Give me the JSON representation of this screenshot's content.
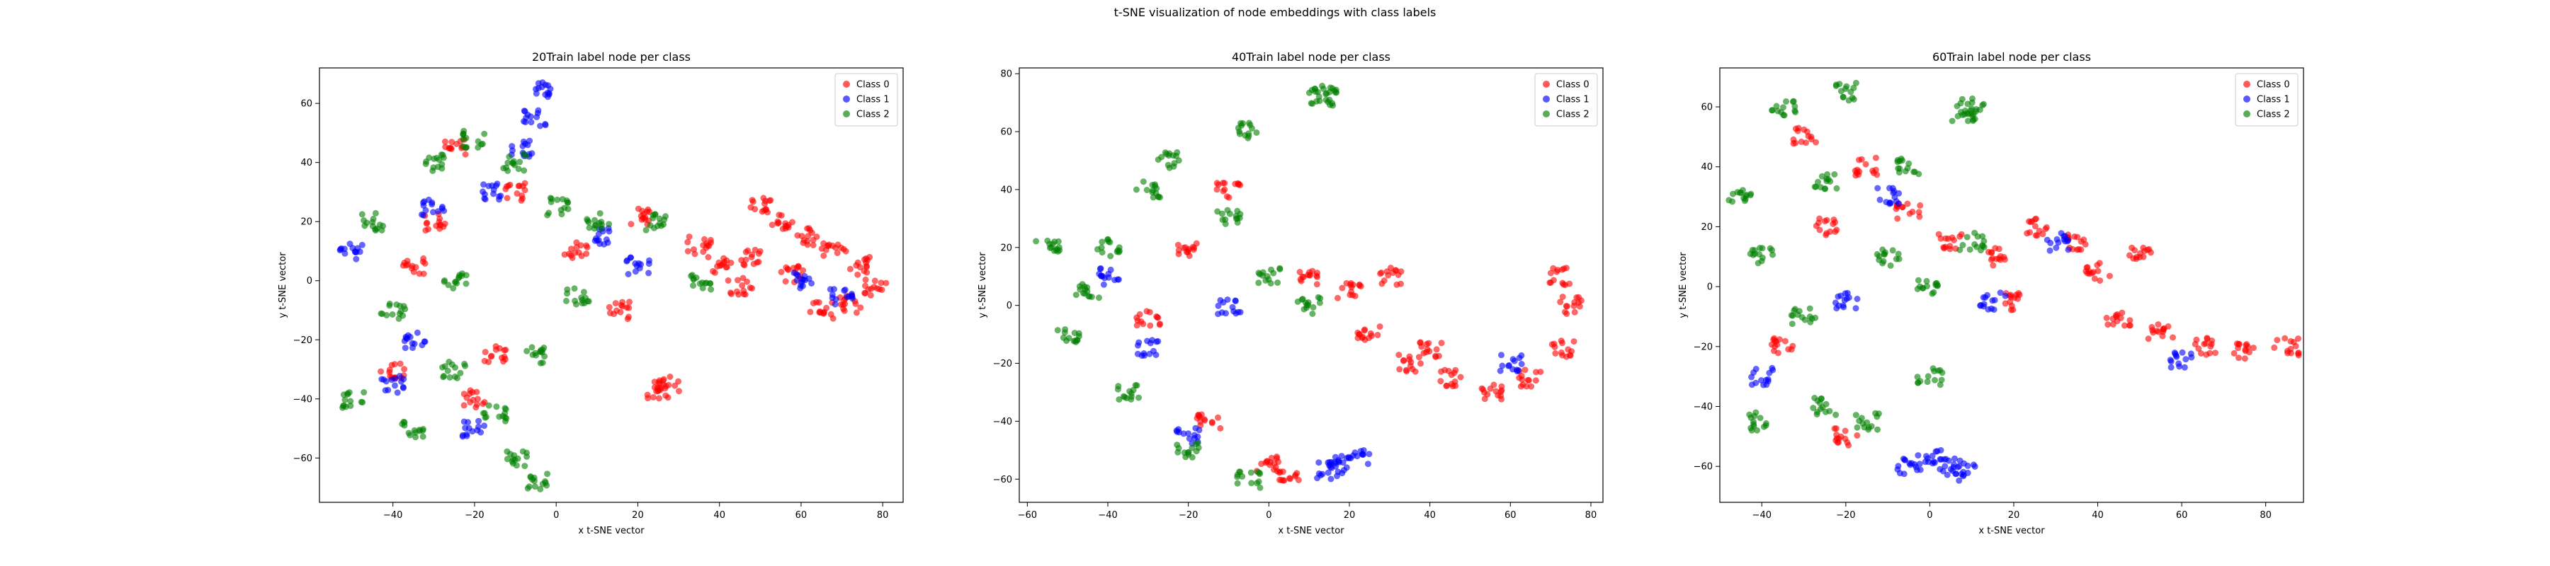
{
  "figure": {
    "suptitle": "t-SNE visualization of node embeddings with class labels"
  },
  "legend_location": "upper-right",
  "chart_data": [
    {
      "type": "scatter",
      "title": "20Train label node per class",
      "xlabel": "x t-SNE vector",
      "ylabel": "y t-SNE vector",
      "xlim": [
        -58,
        85
      ],
      "ylim": [
        -75,
        72
      ],
      "xticks": [
        -40,
        -20,
        0,
        20,
        40,
        60,
        80
      ],
      "yticks": [
        -60,
        -40,
        -20,
        0,
        20,
        40,
        60
      ],
      "grid": false,
      "legend": [
        "Class 0",
        "Class 1",
        "Class 2"
      ],
      "colors": {
        "Class 0": "#ff0000",
        "Class 1": "#0000ff",
        "Class 2": "#008000"
      },
      "series": [
        {
          "name": "Class 0",
          "values": [
            [
              50,
              25
            ],
            [
              55,
              20
            ],
            [
              62,
              15
            ],
            [
              68,
              10
            ],
            [
              75,
              5
            ],
            [
              78,
              -2
            ],
            [
              72,
              -8
            ],
            [
              65,
              -10
            ],
            [
              58,
              2
            ],
            [
              48,
              8
            ],
            [
              40,
              5
            ],
            [
              35,
              12
            ],
            [
              45,
              -2
            ],
            [
              28,
              -35
            ],
            [
              25,
              -37
            ],
            [
              -25,
              45
            ],
            [
              -30,
              20
            ],
            [
              -40,
              -30
            ],
            [
              -20,
              -40
            ],
            [
              -10,
              30
            ],
            [
              5,
              10
            ],
            [
              15,
              -10
            ],
            [
              -35,
              5
            ],
            [
              -15,
              -25
            ],
            [
              20,
              22
            ]
          ]
        },
        {
          "name": "Class 1",
          "values": [
            [
              -2,
              65
            ],
            [
              -5,
              55
            ],
            [
              -8,
              45
            ],
            [
              -30,
              25
            ],
            [
              -35,
              -20
            ],
            [
              -40,
              -35
            ],
            [
              -20,
              -50
            ],
            [
              10,
              15
            ],
            [
              20,
              5
            ],
            [
              -50,
              10
            ],
            [
              60,
              0
            ],
            [
              70,
              -5
            ],
            [
              -15,
              30
            ]
          ]
        },
        {
          "name": "Class 2",
          "values": [
            [
              -5,
              -68
            ],
            [
              -10,
              -60
            ],
            [
              -15,
              -45
            ],
            [
              -25,
              -30
            ],
            [
              -45,
              20
            ],
            [
              -30,
              40
            ],
            [
              -20,
              48
            ],
            [
              -10,
              40
            ],
            [
              0,
              25
            ],
            [
              10,
              20
            ],
            [
              5,
              -5
            ],
            [
              -5,
              -25
            ],
            [
              -40,
              -10
            ],
            [
              -25,
              0
            ],
            [
              25,
              20
            ],
            [
              35,
              0
            ],
            [
              -50,
              -40
            ],
            [
              -35,
              -50
            ]
          ]
        }
      ]
    },
    {
      "type": "scatter",
      "title": "40Train label node per class",
      "xlabel": "x t-SNE vector",
      "ylabel": "y t-SNE vector",
      "xlim": [
        -62,
        83
      ],
      "ylim": [
        -68,
        82
      ],
      "xticks": [
        -60,
        -40,
        -20,
        0,
        20,
        40,
        60,
        80
      ],
      "yticks": [
        -60,
        -40,
        -20,
        0,
        20,
        40,
        60,
        80
      ],
      "grid": false,
      "legend": [
        "Class 0",
        "Class 1",
        "Class 2"
      ],
      "colors": {
        "Class 0": "#ff0000",
        "Class 1": "#0000ff",
        "Class 2": "#008000"
      },
      "series": [
        {
          "name": "Class 0",
          "values": [
            [
              72,
              10
            ],
            [
              75,
              0
            ],
            [
              73,
              -15
            ],
            [
              65,
              -25
            ],
            [
              55,
              -30
            ],
            [
              45,
              -25
            ],
            [
              35,
              -20
            ],
            [
              25,
              -10
            ],
            [
              20,
              5
            ],
            [
              10,
              10
            ],
            [
              -10,
              40
            ],
            [
              -20,
              20
            ],
            [
              -30,
              -5
            ],
            [
              -15,
              -40
            ],
            [
              0,
              -55
            ],
            [
              5,
              -58
            ],
            [
              40,
              -15
            ],
            [
              30,
              10
            ]
          ]
        },
        {
          "name": "Class 1",
          "values": [
            [
              18,
              -55
            ],
            [
              22,
              -53
            ],
            [
              15,
              -57
            ],
            [
              -30,
              -15
            ],
            [
              -20,
              -45
            ],
            [
              -40,
              10
            ],
            [
              -10,
              0
            ],
            [
              60,
              -20
            ]
          ]
        },
        {
          "name": "Class 2",
          "values": [
            [
              14,
              73
            ],
            [
              13,
              72
            ],
            [
              -25,
              50
            ],
            [
              -5,
              60
            ],
            [
              -40,
              20
            ],
            [
              -55,
              20
            ],
            [
              -50,
              -10
            ],
            [
              -35,
              -30
            ],
            [
              -20,
              -50
            ],
            [
              -10,
              30
            ],
            [
              0,
              10
            ],
            [
              10,
              0
            ],
            [
              -30,
              40
            ],
            [
              -45,
              5
            ],
            [
              -5,
              -60
            ]
          ]
        }
      ]
    },
    {
      "type": "scatter",
      "title": "60Train label node per class",
      "xlabel": "x t-SNE vector",
      "ylabel": "y t-SNE vector",
      "xlim": [
        -50,
        89
      ],
      "ylim": [
        -72,
        73
      ],
      "xticks": [
        -40,
        -20,
        0,
        20,
        40,
        60,
        80
      ],
      "yticks": [
        -60,
        -40,
        -20,
        0,
        20,
        40,
        60
      ],
      "grid": false,
      "legend": [
        "Class 0",
        "Class 1",
        "Class 2"
      ],
      "colors": {
        "Class 0": "#ff0000",
        "Class 1": "#0000ff",
        "Class 2": "#008000"
      },
      "series": [
        {
          "name": "Class 0",
          "values": [
            [
              85,
              -20
            ],
            [
              75,
              -22
            ],
            [
              65,
              -20
            ],
            [
              55,
              -15
            ],
            [
              45,
              -10
            ],
            [
              40,
              5
            ],
            [
              50,
              10
            ],
            [
              35,
              15
            ],
            [
              25,
              20
            ],
            [
              15,
              10
            ],
            [
              5,
              15
            ],
            [
              -5,
              25
            ],
            [
              -15,
              40
            ],
            [
              -30,
              50
            ],
            [
              -25,
              20
            ],
            [
              -35,
              -20
            ],
            [
              -20,
              -50
            ],
            [
              20,
              -5
            ]
          ]
        },
        {
          "name": "Class 1",
          "values": [
            [
              0,
              -57
            ],
            [
              5,
              -60
            ],
            [
              8,
              -62
            ],
            [
              -5,
              -60
            ],
            [
              -40,
              -30
            ],
            [
              -20,
              -5
            ],
            [
              -10,
              30
            ],
            [
              15,
              -5
            ],
            [
              30,
              15
            ],
            [
              60,
              -25
            ]
          ]
        },
        {
          "name": "Class 2",
          "values": [
            [
              10,
              60
            ],
            [
              8,
              58
            ],
            [
              -20,
              65
            ],
            [
              -35,
              60
            ],
            [
              -45,
              30
            ],
            [
              -40,
              10
            ],
            [
              -30,
              -10
            ],
            [
              -25,
              -40
            ],
            [
              -15,
              -45
            ],
            [
              -10,
              10
            ],
            [
              0,
              0
            ],
            [
              -5,
              40
            ],
            [
              -25,
              35
            ],
            [
              -40,
              -45
            ],
            [
              10,
              15
            ],
            [
              0,
              -30
            ]
          ]
        }
      ]
    }
  ]
}
